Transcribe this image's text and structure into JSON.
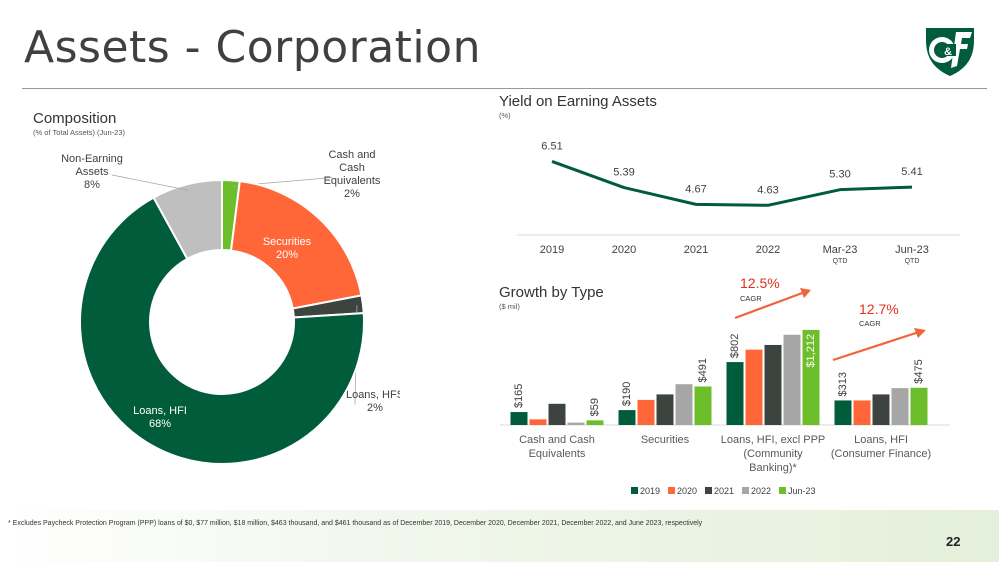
{
  "header": {
    "title": "Assets - Corporation",
    "logo_text": "C&F",
    "page_number": "22"
  },
  "footnote": "* Excludes Paycheck Protection Program (PPP) loans of $0, $77 million, $18 million, $463 thousand, and $461 thousand as of December 2019, December 2020, December 2021, December 2022, and June 2023, respectively",
  "composition": {
    "title": "Composition",
    "subtitle": "(% of Total Assets) (Jun-23)"
  },
  "yield": {
    "title": "Yield on Earning Assets",
    "subtitle": "(%)"
  },
  "growth": {
    "title": "Growth by Type",
    "subtitle": "($ mil)",
    "cagr1": "12.5%",
    "cagr2": "12.7%",
    "cagr_label": "CAGR"
  },
  "chart_data": [
    {
      "type": "pie",
      "title": "Composition",
      "subtitle": "(% of Total Assets) (Jun-23)",
      "slices": [
        {
          "label": "Cash and Cash Equivalents",
          "value": 2,
          "display": [
            "Cash and",
            "Cash",
            "Equivalents",
            "2%"
          ],
          "color": "#6cbf2b"
        },
        {
          "label": "Securities",
          "value": 20,
          "display": [
            "Securities",
            "20%"
          ],
          "color": "#ff6638"
        },
        {
          "label": "Loans, HFS",
          "value": 2,
          "display": [
            "Loans, HFS",
            "2%"
          ],
          "color": "#3d4440"
        },
        {
          "label": "Loans, HFI",
          "value": 68,
          "display": [
            "Loans, HFI",
            "68%"
          ],
          "color": "#005c3a"
        },
        {
          "label": "Non-Earning Assets",
          "value": 8,
          "display": [
            "Non-Earning",
            "Assets",
            "8%"
          ],
          "color": "#bfbfbf"
        }
      ]
    },
    {
      "type": "line",
      "title": "Yield on Earning Assets",
      "ylabel": "(%)",
      "categories": [
        "2019",
        "2020",
        "2021",
        "2022",
        "Mar-23",
        "Jun-23"
      ],
      "category_notes": [
        "",
        "",
        "",
        "",
        "QTD",
        "QTD"
      ],
      "values": [
        6.51,
        5.39,
        4.67,
        4.63,
        5.3,
        5.41
      ],
      "labels": [
        "6.51",
        "5.39",
        "4.67",
        "4.63",
        "5.30",
        "5.41"
      ],
      "ylim": [
        4,
        7
      ],
      "color": "#005c3a"
    },
    {
      "type": "bar",
      "title": "Growth by Type",
      "ylabel": "($ mil)",
      "categories": [
        [
          "Cash and Cash",
          "Equivalents"
        ],
        [
          "Securities"
        ],
        [
          "Loans, HFI, excl PPP",
          "(Community",
          "Banking)*"
        ],
        [
          "Loans, HFI",
          "(Consumer Finance)"
        ]
      ],
      "series": [
        {
          "name": "2019",
          "color": "#005c3a",
          "values": [
            165,
            190,
            802,
            313
          ]
        },
        {
          "name": "2020",
          "color": "#ff6638",
          "values": [
            72,
            320,
            960,
            313
          ]
        },
        {
          "name": "2021",
          "color": "#3d4440",
          "values": [
            270,
            390,
            1020,
            390
          ]
        },
        {
          "name": "2022",
          "color": "#a6a6a6",
          "values": [
            30,
            520,
            1150,
            470
          ]
        },
        {
          "name": "Jun-23",
          "color": "#6cbf2b",
          "values": [
            59,
            491,
            1212,
            475
          ]
        }
      ],
      "data_labels": [
        {
          "category": 0,
          "series": 0,
          "text": "$165"
        },
        {
          "category": 0,
          "series": 4,
          "text": "$59"
        },
        {
          "category": 1,
          "series": 0,
          "text": "$190"
        },
        {
          "category": 1,
          "series": 4,
          "text": "$491"
        },
        {
          "category": 2,
          "series": 0,
          "text": "$802"
        },
        {
          "category": 2,
          "series": 4,
          "text": "$1,212"
        },
        {
          "category": 3,
          "series": 0,
          "text": "$313"
        },
        {
          "category": 3,
          "series": 4,
          "text": "$475"
        }
      ],
      "ylim": [
        0,
        1300
      ],
      "legend_position": "bottom"
    }
  ]
}
